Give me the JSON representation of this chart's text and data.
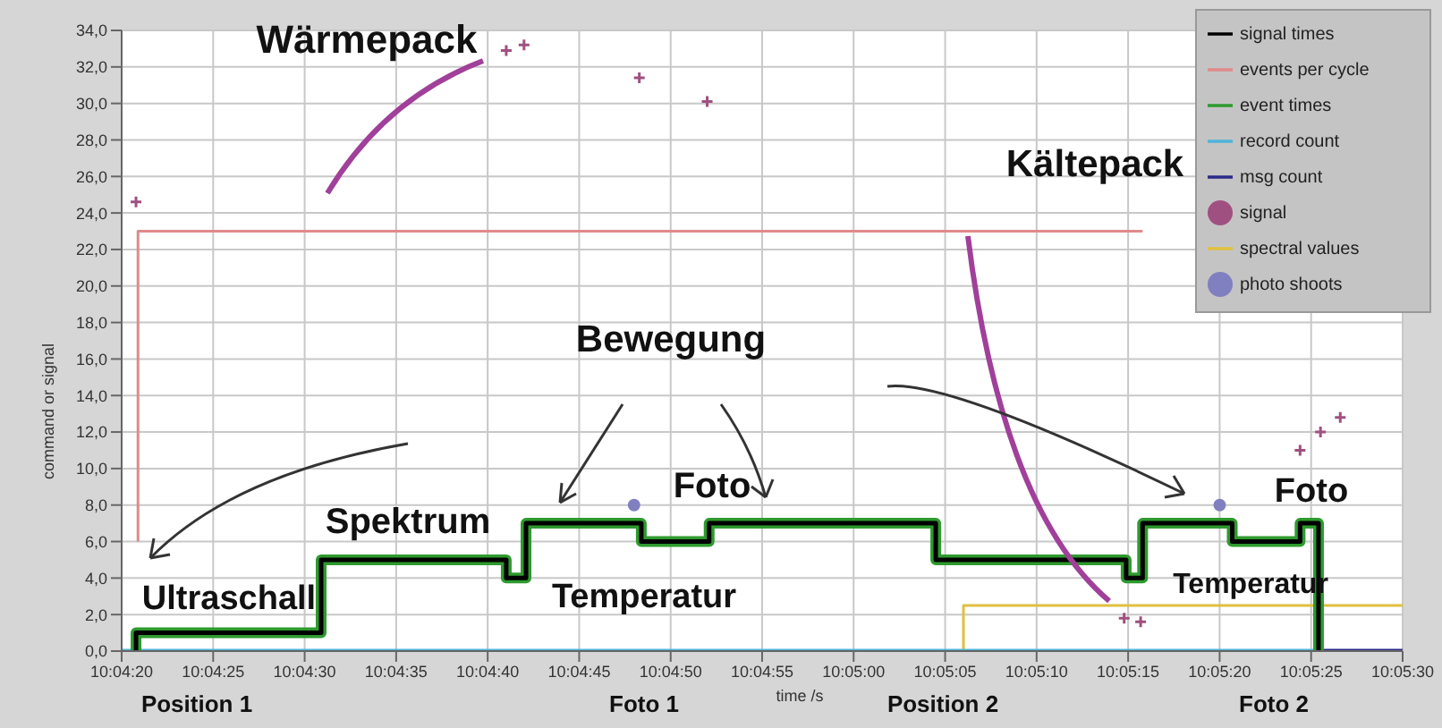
{
  "chart_data": {
    "type": "step",
    "xlabel": "time /s",
    "ylabel": "command or signal",
    "xlim": [
      10.072222,
      10.091667
    ],
    "xticks": [
      {
        "value": 10.072222,
        "label": "10:04:20"
      },
      {
        "value": 10.073611,
        "label": "10:04:25"
      },
      {
        "value": 10.075,
        "label": "10:04:30"
      },
      {
        "value": 10.076389,
        "label": "10:04:35"
      },
      {
        "value": 10.077778,
        "label": "10:04:40"
      },
      {
        "value": 10.079167,
        "label": "10:04:45"
      },
      {
        "value": 10.080556,
        "label": "10:04:50"
      },
      {
        "value": 10.081944,
        "label": "10:04:55"
      },
      {
        "value": 10.083333,
        "label": "10:05:00"
      },
      {
        "value": 10.084722,
        "label": "10:05:05"
      },
      {
        "value": 10.086111,
        "label": "10:05:10"
      },
      {
        "value": 10.0875,
        "label": "10:05:15"
      },
      {
        "value": 10.088889,
        "label": "10:05:20"
      },
      {
        "value": 10.090278,
        "label": "10:05:25"
      },
      {
        "value": 10.091667,
        "label": "10:05:30"
      }
    ],
    "ylim": [
      0,
      34
    ],
    "yticks": [
      {
        "value": 0,
        "label": "0,0"
      },
      {
        "value": 2,
        "label": "2,0"
      },
      {
        "value": 4,
        "label": "4,0"
      },
      {
        "value": 6,
        "label": "6,0"
      },
      {
        "value": 8,
        "label": "8,0"
      },
      {
        "value": 10,
        "label": "10,0"
      },
      {
        "value": 12,
        "label": "12,0"
      },
      {
        "value": 14,
        "label": "14,0"
      },
      {
        "value": 16,
        "label": "16,0"
      },
      {
        "value": 18,
        "label": "18,0"
      },
      {
        "value": 20,
        "label": "20,0"
      },
      {
        "value": 22,
        "label": "22,0"
      },
      {
        "value": 24,
        "label": "24,0"
      },
      {
        "value": 26,
        "label": "26,0"
      },
      {
        "value": 28,
        "label": "28,0"
      },
      {
        "value": 30,
        "label": "30,0"
      },
      {
        "value": 32,
        "label": "32,0"
      },
      {
        "value": 34,
        "label": "34,0"
      }
    ],
    "grid": true,
    "legend": "top right",
    "marker": "none",
    "line_style": "solid",
    "series": [
      {
        "name": "signal times",
        "color": "#000000",
        "x": [
          10.07244,
          10.07244,
          10.07525,
          10.07806,
          10.07836,
          10.08011,
          10.08114,
          10.08458,
          10.08747,
          10.08772,
          10.08908,
          10.09011,
          10.09039
        ],
        "values": [
          0,
          1,
          5,
          4,
          7,
          6,
          7,
          5,
          4,
          7,
          6,
          7,
          0
        ]
      },
      {
        "name": "events per cycle",
        "color": "#e08a8a",
        "x": [
          10.07247,
          10.07247,
          10.08772
        ],
        "values": [
          6,
          23,
          23
        ]
      },
      {
        "name": "event times",
        "color": "#2e9a2e",
        "x": [
          10.07244,
          10.07244,
          10.07525,
          10.07806,
          10.07836,
          10.08011,
          10.08114,
          10.08458,
          10.08747,
          10.08772,
          10.08908,
          10.09011,
          10.09039
        ],
        "values": [
          0,
          1,
          5,
          4,
          7,
          6,
          7,
          5,
          4,
          7,
          6,
          7,
          0
        ]
      },
      {
        "name": "record count",
        "color": "#4fb3d9",
        "x": [
          10.072222,
          10.09039
        ],
        "values": [
          0,
          0
        ]
      },
      {
        "name": "msg count",
        "color": "#2a2a8a",
        "x": [
          10.09039,
          10.091667
        ],
        "values": [
          0,
          0
        ]
      },
      {
        "name": "signal",
        "type": "scatter",
        "marker": "cross",
        "color": "#a05080",
        "x": [
          10.07244,
          10.07806,
          10.07833,
          10.08008,
          10.08111,
          10.08744,
          10.08769,
          10.09011,
          10.09042,
          10.09072
        ],
        "values": [
          24.6,
          32.9,
          33.2,
          31.4,
          30.1,
          1.8,
          1.6,
          11.0,
          12.0,
          12.8
        ]
      },
      {
        "name": "spectral values",
        "color": "#e0c040",
        "x": [
          10.085,
          10.085,
          10.091667
        ],
        "values": [
          0,
          2.5,
          2.5
        ]
      },
      {
        "name": "photo shoots",
        "type": "scatter",
        "marker": "circle",
        "color": "#8080c0",
        "x": [
          10.08,
          10.08889
        ],
        "values": [
          8.0,
          8.0
        ]
      }
    ],
    "annotations": [
      "Wärmepack",
      "Kältepack",
      "Bewegung",
      "Foto",
      "Spektrum",
      "Ultraschall",
      "Temperatur",
      "Foto",
      "Temperatur",
      "Position 1",
      "Foto 1",
      "Position 2",
      "Foto 2"
    ]
  }
}
